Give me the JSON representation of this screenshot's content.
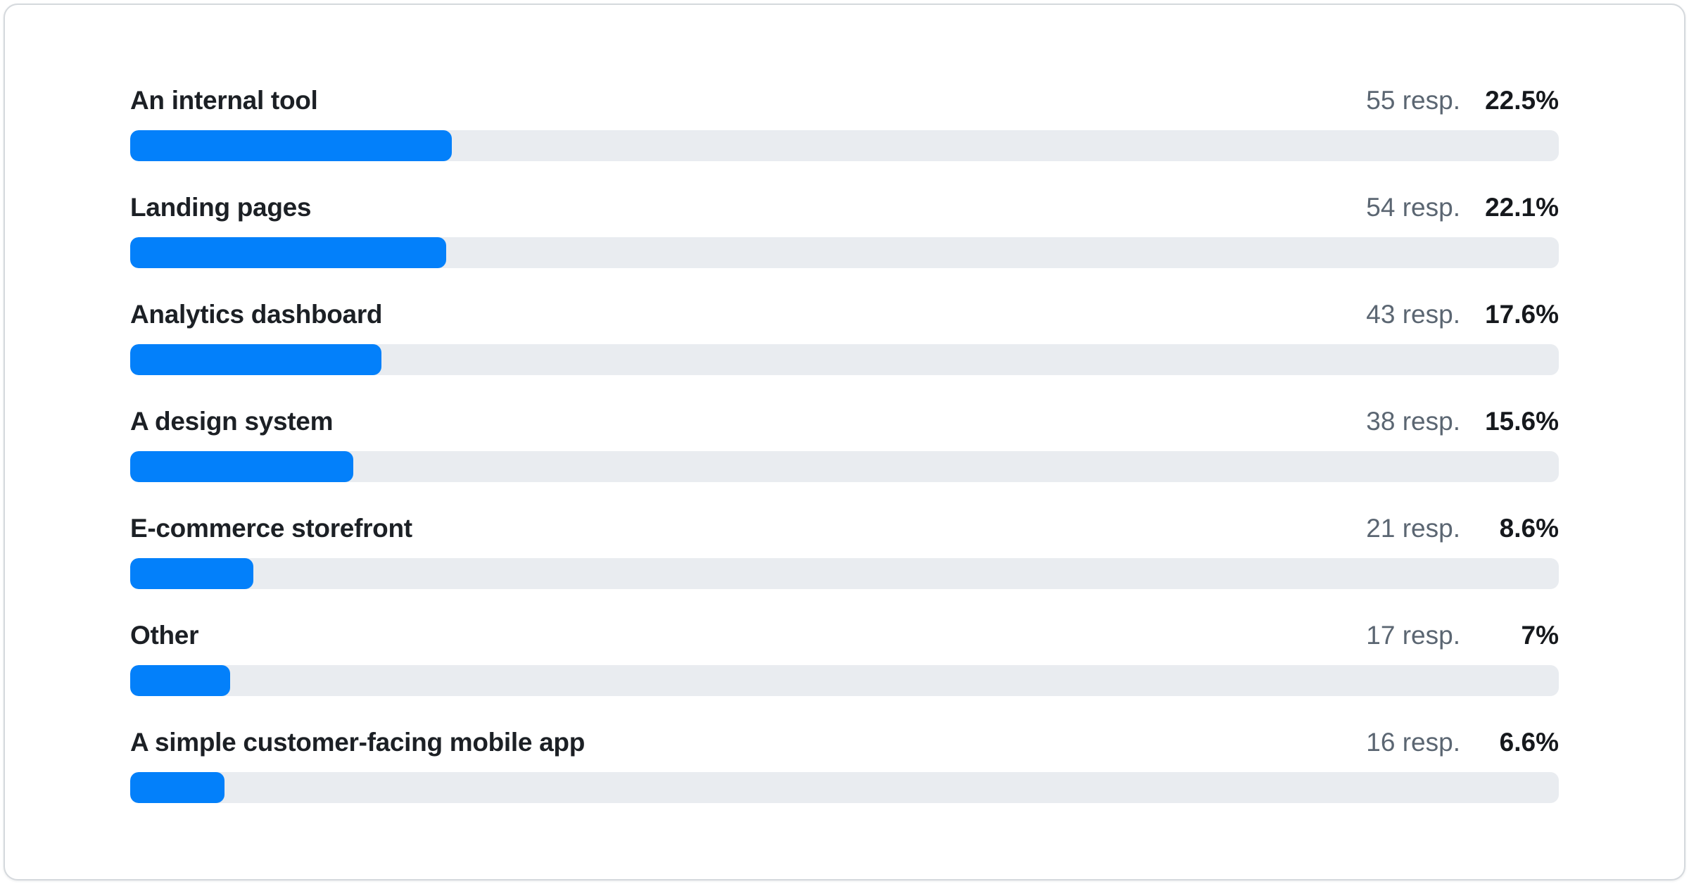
{
  "colors": {
    "bar_fill": "#0380fa",
    "bar_track": "#e9ecf0",
    "label_text": "#1c2025",
    "responses_text": "#5b6672",
    "percent_text": "#16191d",
    "card_border": "#d5d9dd",
    "card_background": "#ffffff"
  },
  "rows": [
    {
      "label": "An internal tool",
      "responses": "55 resp.",
      "percent": "22.5%",
      "pct_value": 22.5
    },
    {
      "label": "Landing pages",
      "responses": "54 resp.",
      "percent": "22.1%",
      "pct_value": 22.1
    },
    {
      "label": "Analytics dashboard",
      "responses": "43 resp.",
      "percent": "17.6%",
      "pct_value": 17.6
    },
    {
      "label": "A design system",
      "responses": "38 resp.",
      "percent": "15.6%",
      "pct_value": 15.6
    },
    {
      "label": "E-commerce storefront",
      "responses": "21 resp.",
      "percent": "8.6%",
      "pct_value": 8.6
    },
    {
      "label": "Other",
      "responses": "17 resp.",
      "percent": "7%",
      "pct_value": 7
    },
    {
      "label": "A simple customer-facing mobile app",
      "responses": "16 resp.",
      "percent": "6.6%",
      "pct_value": 6.6
    }
  ],
  "chart_data": {
    "type": "bar",
    "orientation": "horizontal",
    "categories": [
      "An internal tool",
      "Landing pages",
      "Analytics dashboard",
      "A design system",
      "E-commerce storefront",
      "Other",
      "A simple customer-facing mobile app"
    ],
    "series": [
      {
        "name": "Responses",
        "values": [
          55,
          54,
          43,
          38,
          21,
          17,
          16
        ]
      },
      {
        "name": "Percentage",
        "values": [
          22.5,
          22.1,
          17.6,
          15.6,
          8.6,
          7,
          6.6
        ]
      }
    ],
    "title": "",
    "xlabel": "",
    "ylabel": "",
    "xlim": [
      0,
      100
    ],
    "grid": false,
    "legend_position": "none",
    "value_label_format": "{n} resp.  {pct}%"
  }
}
